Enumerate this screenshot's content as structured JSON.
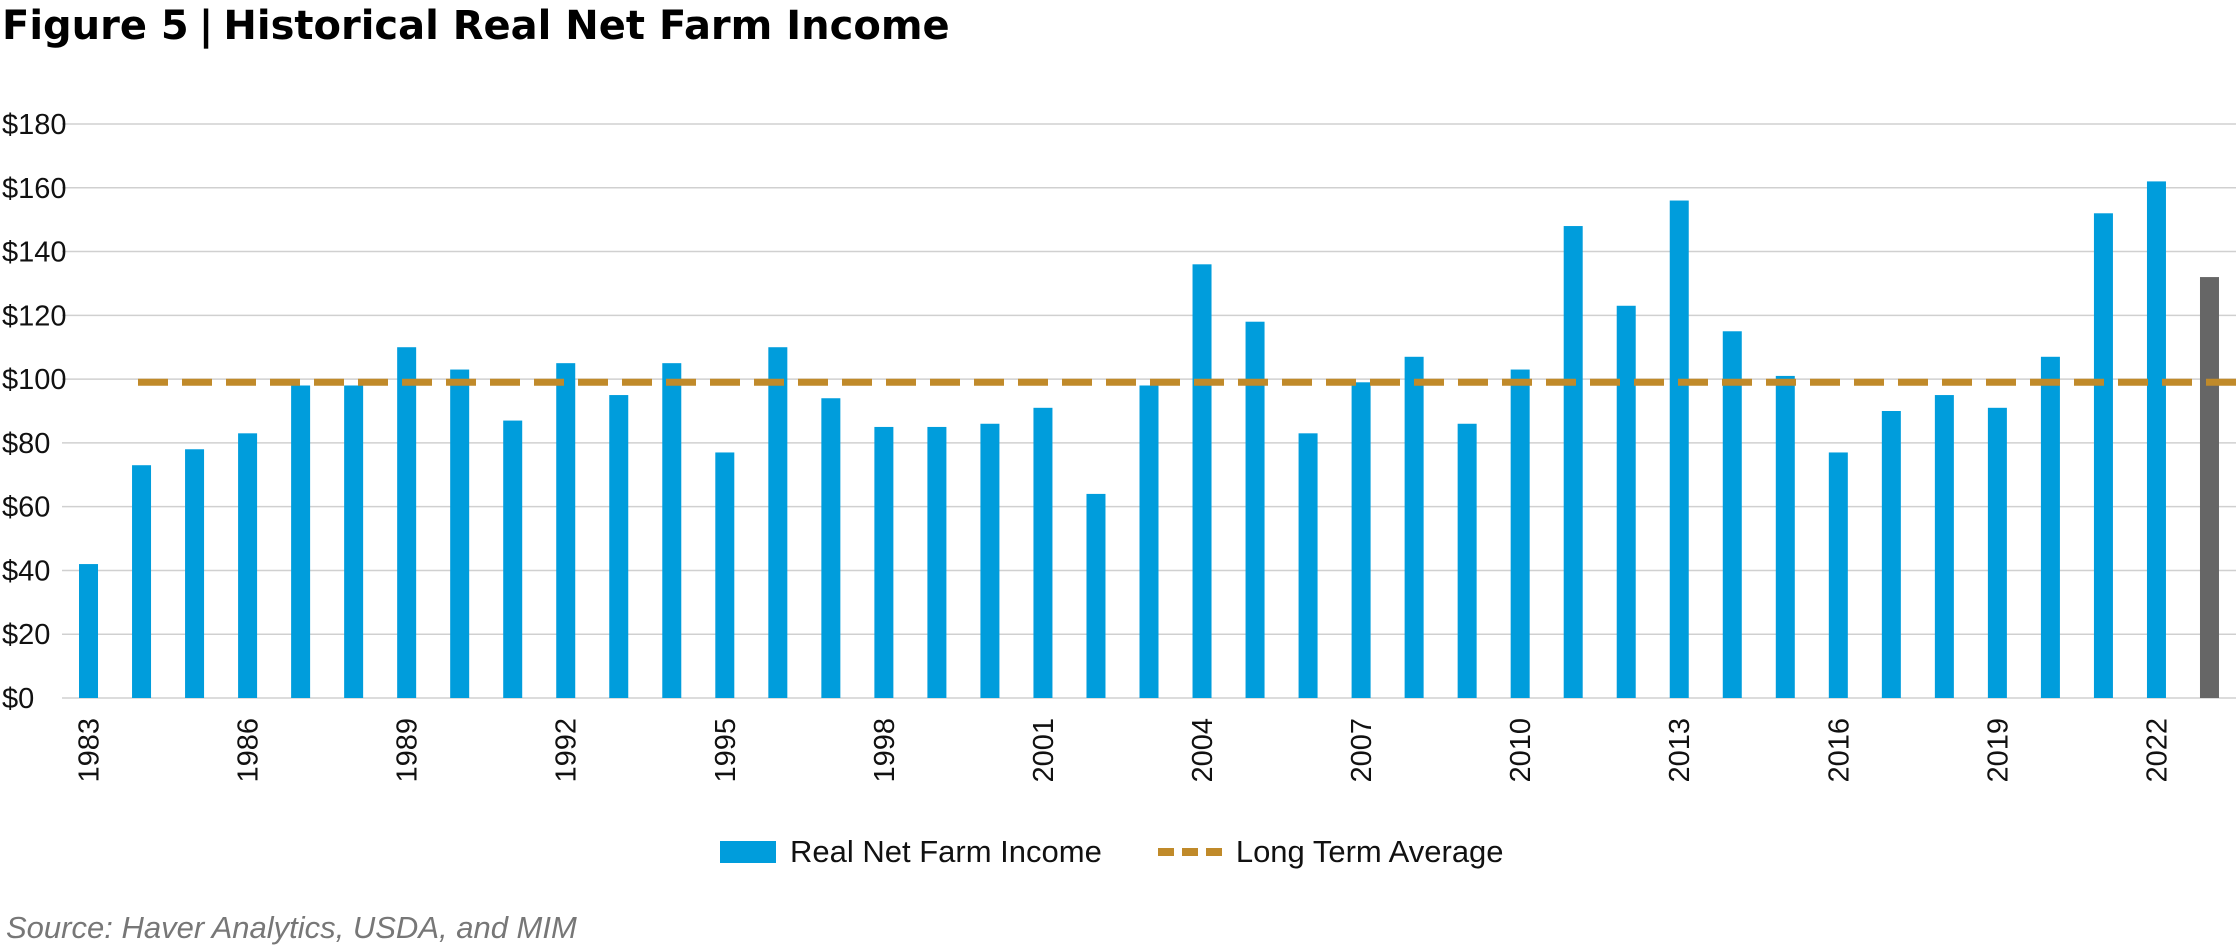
{
  "figure": {
    "label": "Figure 5",
    "separator": "|",
    "title": "Historical Real Net Farm Income"
  },
  "source": "Source: Haver Analytics, USDA, and MIM",
  "legend": {
    "bar_label": "Real Net Farm Income",
    "line_label": "Long Term Average"
  },
  "colors": {
    "bar": "#009ddc",
    "last_bar": "#666666",
    "average_line": "#c08a2a",
    "grid": "#d0d0d0"
  },
  "chart_data": {
    "type": "bar",
    "title": "Historical Real Net Farm Income",
    "xlabel": "",
    "ylabel": "",
    "ylim": [
      0,
      180
    ],
    "yticks": [
      0,
      20,
      40,
      60,
      80,
      100,
      120,
      140,
      160,
      180
    ],
    "ytick_labels": [
      "$0",
      "$20",
      "$40",
      "$60",
      "$80",
      "$100",
      "$120",
      "$140",
      "$160",
      "$180"
    ],
    "grid": true,
    "legend_position": "bottom",
    "categories": [
      "1983",
      "1984",
      "1985",
      "1986",
      "1987",
      "1988",
      "1989",
      "1990",
      "1991",
      "1992",
      "1993",
      "1994",
      "1995",
      "1996",
      "1997",
      "1998",
      "1999",
      "2000",
      "2001",
      "2002",
      "2003",
      "2004",
      "2005",
      "2006",
      "2007",
      "2008",
      "2009",
      "2010",
      "2011",
      "2012",
      "2013",
      "2014",
      "2015",
      "2016",
      "2017",
      "2018",
      "2019",
      "2020",
      "2021",
      "2022",
      "2023"
    ],
    "xtick_labels": [
      "1983",
      "1986",
      "1989",
      "1992",
      "1995",
      "1998",
      "2001",
      "2004",
      "2007",
      "2010",
      "2013",
      "2016",
      "2019",
      "2022"
    ],
    "series": [
      {
        "name": "Real Net Farm Income",
        "values": [
          42,
          73,
          78,
          83,
          98,
          98,
          110,
          103,
          87,
          105,
          95,
          105,
          77,
          110,
          94,
          85,
          85,
          86,
          91,
          64,
          98,
          136,
          118,
          83,
          99,
          107,
          86,
          103,
          148,
          123,
          156,
          115,
          101,
          77,
          90,
          95,
          91,
          107,
          152,
          162,
          132
        ]
      },
      {
        "name": "Long Term Average",
        "type": "line",
        "style": "dashed",
        "value": 99
      }
    ],
    "highlighted_category": "2023"
  }
}
